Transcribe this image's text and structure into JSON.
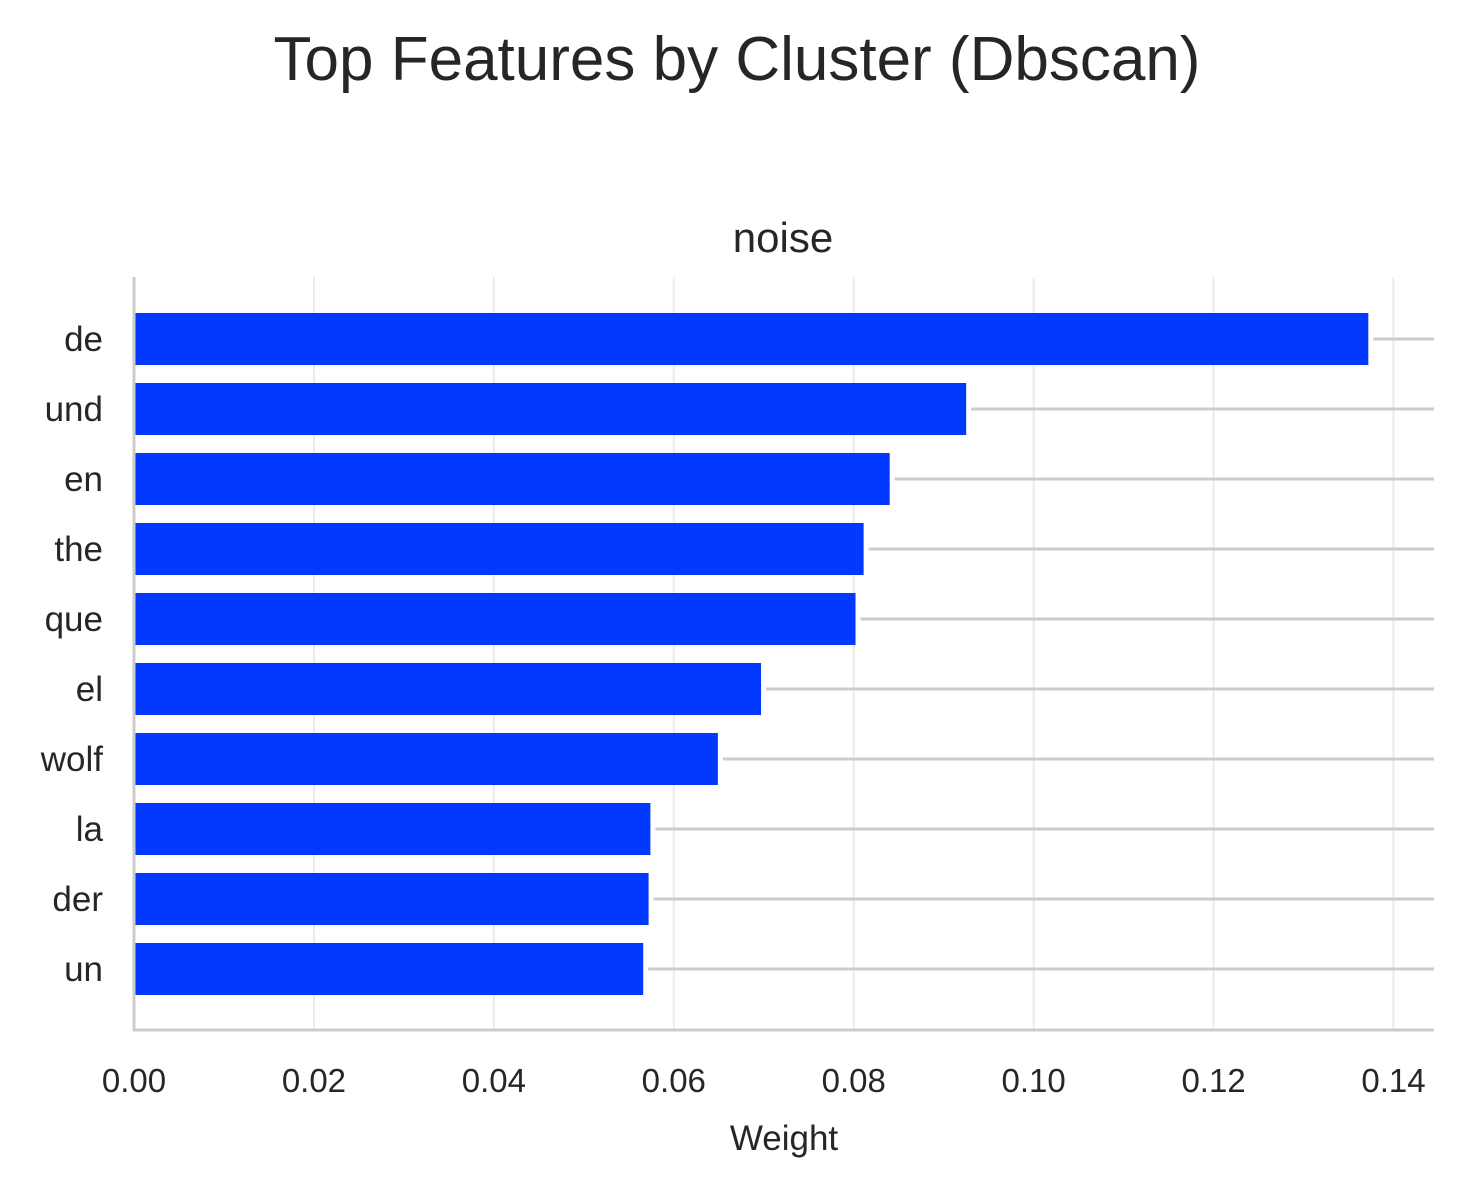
{
  "chart_data": {
    "type": "bar",
    "orientation": "horizontal",
    "title": "Top Features by Cluster (Dbscan)",
    "subtitle": "noise",
    "xlabel": "Weight",
    "ylabel": "",
    "categories": [
      "de",
      "und",
      "en",
      "the",
      "que",
      "el",
      "wolf",
      "la",
      "der",
      "un"
    ],
    "values": [
      0.1372,
      0.0925,
      0.084,
      0.0811,
      0.0802,
      0.0697,
      0.0649,
      0.0574,
      0.0572,
      0.0566
    ],
    "xlim": [
      0,
      0.1445
    ],
    "xticks": [
      0.0,
      0.02,
      0.04,
      0.06,
      0.08,
      0.1,
      0.12,
      0.14
    ],
    "xtick_labels": [
      "0.00",
      "0.02",
      "0.04",
      "0.06",
      "0.08",
      "0.10",
      "0.12",
      "0.14"
    ],
    "grid": true,
    "bar_color": "#0339ff",
    "grid_color": "#ebebeb",
    "lead_line_color": "#cccccc",
    "axis_color": "#cccccc"
  }
}
